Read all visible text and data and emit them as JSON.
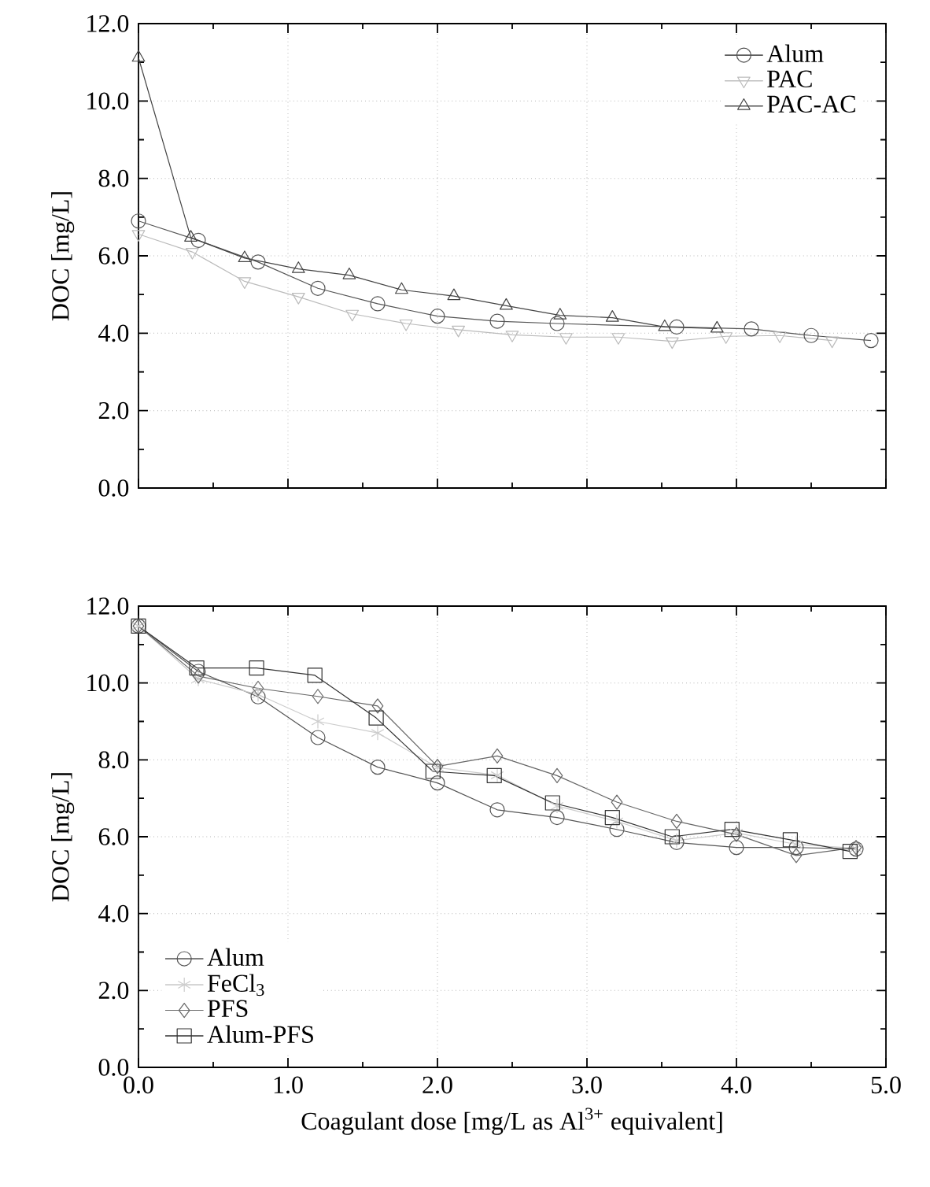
{
  "chart_data": [
    {
      "type": "line",
      "ylabel": "DOC [mg/L]",
      "xlim": [
        0,
        5
      ],
      "ylim": [
        0,
        12
      ],
      "xticks": [
        {
          "value": 0,
          "label": null
        },
        {
          "value": 1,
          "label": null
        },
        {
          "value": 2,
          "label": null
        },
        {
          "value": 3,
          "label": null
        },
        {
          "value": 4,
          "label": null
        },
        {
          "value": 5,
          "label": null
        }
      ],
      "yticks": [
        {
          "value": 0,
          "label": "0.0"
        },
        {
          "value": 2,
          "label": "2.0"
        },
        {
          "value": 4,
          "label": "4.0"
        },
        {
          "value": 6,
          "label": "6.0"
        },
        {
          "value": 8,
          "label": "8.0"
        },
        {
          "value": 10,
          "label": "10.0"
        },
        {
          "value": 12,
          "label": "12.0"
        }
      ],
      "tick_labels": "y",
      "grid": true,
      "legend": "top right",
      "line_style": "solid",
      "series": [
        {
          "name": "Alum",
          "color": "#555555",
          "marker": "circle",
          "x": [
            0,
            0.4,
            0.8,
            1.2,
            1.6,
            2.0,
            2.4,
            2.8,
            3.6,
            4.1,
            4.5,
            4.9
          ],
          "values": [
            6.9,
            6.4,
            5.84,
            5.16,
            4.76,
            4.44,
            4.31,
            4.25,
            4.16,
            4.11,
            3.94,
            3.81
          ]
        },
        {
          "name": "PAC",
          "color": "#bbbbbb",
          "marker": "triangle-down",
          "x": [
            0,
            0.36,
            0.71,
            1.07,
            1.43,
            1.79,
            2.14,
            2.5,
            2.86,
            3.21,
            3.57,
            3.93,
            4.29,
            4.64
          ],
          "values": [
            6.56,
            6.1,
            5.34,
            4.94,
            4.5,
            4.25,
            4.09,
            3.96,
            3.9,
            3.9,
            3.79,
            3.92,
            3.94,
            3.81
          ]
        },
        {
          "name": "PAC-AC",
          "color": "#444444",
          "marker": "triangle",
          "x": [
            0,
            0.35,
            0.71,
            1.07,
            1.41,
            1.76,
            2.11,
            2.46,
            2.82,
            3.17,
            3.52,
            3.87
          ],
          "values": [
            11.12,
            6.47,
            5.94,
            5.66,
            5.5,
            5.12,
            4.96,
            4.71,
            4.46,
            4.4,
            4.16,
            4.12
          ]
        }
      ]
    },
    {
      "type": "line",
      "xlabel": "Coagulant dose [mg/L as Al$^{3+}$ equivalent]",
      "ylabel": "DOC [mg/L]",
      "xlim": [
        0,
        5
      ],
      "ylim": [
        0,
        12
      ],
      "xticks": [
        {
          "value": 0,
          "label": "0.0"
        },
        {
          "value": 1,
          "label": "1.0"
        },
        {
          "value": 2,
          "label": "2.0"
        },
        {
          "value": 3,
          "label": "3.0"
        },
        {
          "value": 4,
          "label": "4.0"
        },
        {
          "value": 5,
          "label": "5.0"
        }
      ],
      "yticks": [
        {
          "value": 0,
          "label": "0.0"
        },
        {
          "value": 2,
          "label": "2.0"
        },
        {
          "value": 4,
          "label": "4.0"
        },
        {
          "value": 6,
          "label": "6.0"
        },
        {
          "value": 8,
          "label": "8.0"
        },
        {
          "value": 10,
          "label": "10.0"
        },
        {
          "value": 12,
          "label": "12.0"
        }
      ],
      "grid": true,
      "legend": "bottom left",
      "line_style": "solid",
      "series": [
        {
          "name": "Alum",
          "color": "#555555",
          "marker": "circle",
          "x": [
            0,
            0.4,
            0.8,
            1.2,
            1.6,
            2.0,
            2.4,
            2.8,
            3.2,
            3.6,
            4.0,
            4.4,
            4.8
          ],
          "values": [
            11.48,
            10.3,
            9.64,
            8.58,
            7.81,
            7.4,
            6.7,
            6.5,
            6.19,
            5.85,
            5.72,
            5.72,
            5.68
          ]
        },
        {
          "name": "FeCl$_{3}$",
          "color": "#cccccc",
          "marker": "cross",
          "x": [
            0,
            0.4,
            0.8,
            1.2,
            1.6,
            2.0,
            2.4,
            2.8,
            3.2,
            3.6,
            4.0,
            4.4,
            4.8
          ],
          "values": [
            11.48,
            10.1,
            9.7,
            9.0,
            8.7,
            7.8,
            7.6,
            6.8,
            6.4,
            5.9,
            6.1,
            5.8,
            5.7
          ]
        },
        {
          "name": "PFS",
          "color": "#666666",
          "marker": "diamond",
          "x": [
            0,
            0.4,
            0.8,
            1.2,
            1.6,
            2.0,
            2.4,
            2.8,
            3.2,
            3.6,
            4.0,
            4.4,
            4.8
          ],
          "values": [
            11.48,
            10.18,
            9.86,
            9.65,
            9.4,
            7.83,
            8.1,
            7.59,
            6.9,
            6.4,
            6.06,
            5.51,
            5.72
          ]
        },
        {
          "name": "Alum-PFS",
          "color": "#333333",
          "marker": "square",
          "x": [
            0,
            0.39,
            0.79,
            1.18,
            1.59,
            1.97,
            2.38,
            2.77,
            3.17,
            3.57,
            3.97,
            4.36,
            4.76
          ],
          "values": [
            11.48,
            10.39,
            10.39,
            10.2,
            9.09,
            7.7,
            7.59,
            6.88,
            6.5,
            6.0,
            6.19,
            5.92,
            5.62
          ]
        }
      ]
    }
  ]
}
